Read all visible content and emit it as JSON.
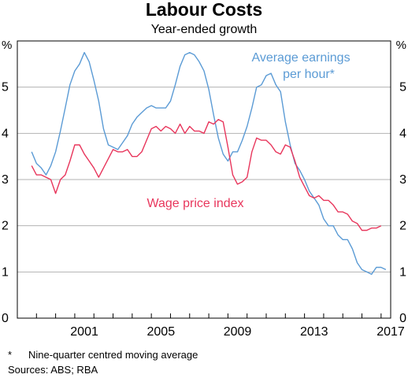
{
  "chart_data": {
    "type": "line",
    "title": "Labour Costs",
    "subtitle": "Year-ended growth",
    "y_unit_left": "%",
    "y_unit_right": "%",
    "ylim": [
      0,
      6
    ],
    "y_ticks": [
      0,
      1,
      2,
      3,
      4,
      5
    ],
    "xlim": [
      1998.0,
      2017.5
    ],
    "x_ticks": [
      2001,
      2005,
      2009,
      2013,
      2017
    ],
    "grid": true,
    "series": [
      {
        "name": "Average earnings per hour*",
        "name_lines": [
          "Average earnings",
          "per hour*"
        ],
        "color": "#5b9bd5",
        "points": [
          [
            1998.75,
            3.6
          ],
          [
            1999.0,
            3.35
          ],
          [
            1999.25,
            3.25
          ],
          [
            1999.5,
            3.1
          ],
          [
            1999.75,
            3.3
          ],
          [
            2000.0,
            3.6
          ],
          [
            2000.25,
            4.05
          ],
          [
            2000.5,
            4.55
          ],
          [
            2000.75,
            5.05
          ],
          [
            2001.0,
            5.35
          ],
          [
            2001.25,
            5.5
          ],
          [
            2001.5,
            5.75
          ],
          [
            2001.75,
            5.55
          ],
          [
            2002.0,
            5.15
          ],
          [
            2002.25,
            4.7
          ],
          [
            2002.5,
            4.1
          ],
          [
            2002.75,
            3.75
          ],
          [
            2003.0,
            3.7
          ],
          [
            2003.25,
            3.65
          ],
          [
            2003.5,
            3.8
          ],
          [
            2003.75,
            3.95
          ],
          [
            2004.0,
            4.2
          ],
          [
            2004.25,
            4.35
          ],
          [
            2004.5,
            4.45
          ],
          [
            2004.75,
            4.55
          ],
          [
            2005.0,
            4.6
          ],
          [
            2005.25,
            4.55
          ],
          [
            2005.5,
            4.55
          ],
          [
            2005.75,
            4.55
          ],
          [
            2006.0,
            4.7
          ],
          [
            2006.25,
            5.05
          ],
          [
            2006.5,
            5.45
          ],
          [
            2006.75,
            5.7
          ],
          [
            2007.0,
            5.75
          ],
          [
            2007.25,
            5.7
          ],
          [
            2007.5,
            5.55
          ],
          [
            2007.75,
            5.35
          ],
          [
            2008.0,
            4.95
          ],
          [
            2008.25,
            4.4
          ],
          [
            2008.5,
            3.9
          ],
          [
            2008.75,
            3.55
          ],
          [
            2009.0,
            3.4
          ],
          [
            2009.25,
            3.6
          ],
          [
            2009.5,
            3.6
          ],
          [
            2009.75,
            3.85
          ],
          [
            2010.0,
            4.15
          ],
          [
            2010.25,
            4.55
          ],
          [
            2010.5,
            5.0
          ],
          [
            2010.75,
            5.05
          ],
          [
            2011.0,
            5.25
          ],
          [
            2011.25,
            5.3
          ],
          [
            2011.5,
            5.05
          ],
          [
            2011.75,
            4.9
          ],
          [
            2012.0,
            4.25
          ],
          [
            2012.25,
            3.75
          ],
          [
            2012.5,
            3.35
          ],
          [
            2012.75,
            3.2
          ],
          [
            2013.0,
            3.0
          ],
          [
            2013.25,
            2.75
          ],
          [
            2013.5,
            2.6
          ],
          [
            2013.75,
            2.45
          ],
          [
            2014.0,
            2.15
          ],
          [
            2014.25,
            2.0
          ],
          [
            2014.5,
            2.0
          ],
          [
            2014.75,
            1.8
          ],
          [
            2015.0,
            1.7
          ],
          [
            2015.25,
            1.7
          ],
          [
            2015.5,
            1.5
          ],
          [
            2015.75,
            1.2
          ],
          [
            2016.0,
            1.05
          ],
          [
            2016.25,
            1.0
          ],
          [
            2016.5,
            0.95
          ],
          [
            2016.75,
            1.1
          ],
          [
            2017.0,
            1.1
          ],
          [
            2017.25,
            1.05
          ]
        ]
      },
      {
        "name": "Wage price index",
        "name_lines": [
          "Wage price index"
        ],
        "color": "#e8365c",
        "points": [
          [
            1998.75,
            3.3
          ],
          [
            1999.0,
            3.1
          ],
          [
            1999.25,
            3.1
          ],
          [
            1999.5,
            3.05
          ],
          [
            1999.75,
            3.0
          ],
          [
            2000.0,
            2.7
          ],
          [
            2000.25,
            3.0
          ],
          [
            2000.5,
            3.1
          ],
          [
            2000.75,
            3.4
          ],
          [
            2001.0,
            3.75
          ],
          [
            2001.25,
            3.75
          ],
          [
            2001.5,
            3.55
          ],
          [
            2001.75,
            3.4
          ],
          [
            2002.0,
            3.25
          ],
          [
            2002.25,
            3.05
          ],
          [
            2002.5,
            3.25
          ],
          [
            2002.75,
            3.45
          ],
          [
            2003.0,
            3.65
          ],
          [
            2003.25,
            3.6
          ],
          [
            2003.5,
            3.6
          ],
          [
            2003.75,
            3.65
          ],
          [
            2004.0,
            3.5
          ],
          [
            2004.25,
            3.5
          ],
          [
            2004.5,
            3.6
          ],
          [
            2004.75,
            3.85
          ],
          [
            2005.0,
            4.1
          ],
          [
            2005.25,
            4.15
          ],
          [
            2005.5,
            4.05
          ],
          [
            2005.75,
            4.15
          ],
          [
            2006.0,
            4.1
          ],
          [
            2006.25,
            4.0
          ],
          [
            2006.5,
            4.2
          ],
          [
            2006.75,
            4.0
          ],
          [
            2007.0,
            4.15
          ],
          [
            2007.25,
            4.05
          ],
          [
            2007.5,
            4.05
          ],
          [
            2007.75,
            4.0
          ],
          [
            2008.0,
            4.25
          ],
          [
            2008.25,
            4.2
          ],
          [
            2008.5,
            4.3
          ],
          [
            2008.75,
            4.25
          ],
          [
            2009.0,
            3.7
          ],
          [
            2009.25,
            3.1
          ],
          [
            2009.5,
            2.9
          ],
          [
            2009.75,
            2.95
          ],
          [
            2010.0,
            3.05
          ],
          [
            2010.25,
            3.6
          ],
          [
            2010.5,
            3.9
          ],
          [
            2010.75,
            3.85
          ],
          [
            2011.0,
            3.85
          ],
          [
            2011.25,
            3.75
          ],
          [
            2011.5,
            3.6
          ],
          [
            2011.75,
            3.55
          ],
          [
            2012.0,
            3.75
          ],
          [
            2012.25,
            3.7
          ],
          [
            2012.5,
            3.4
          ],
          [
            2012.75,
            3.05
          ],
          [
            2013.0,
            2.85
          ],
          [
            2013.25,
            2.65
          ],
          [
            2013.5,
            2.6
          ],
          [
            2013.75,
            2.65
          ],
          [
            2014.0,
            2.55
          ],
          [
            2014.25,
            2.55
          ],
          [
            2014.5,
            2.45
          ],
          [
            2014.75,
            2.3
          ],
          [
            2015.0,
            2.3
          ],
          [
            2015.25,
            2.25
          ],
          [
            2015.5,
            2.1
          ],
          [
            2015.75,
            2.05
          ],
          [
            2016.0,
            1.9
          ],
          [
            2016.25,
            1.9
          ],
          [
            2016.5,
            1.95
          ],
          [
            2016.75,
            1.95
          ],
          [
            2017.0,
            2.0
          ]
        ]
      }
    ]
  },
  "footnotes": {
    "note_marker": "*",
    "note_text": "Nine-quarter centred moving average",
    "sources": "Sources:   ABS; RBA"
  }
}
